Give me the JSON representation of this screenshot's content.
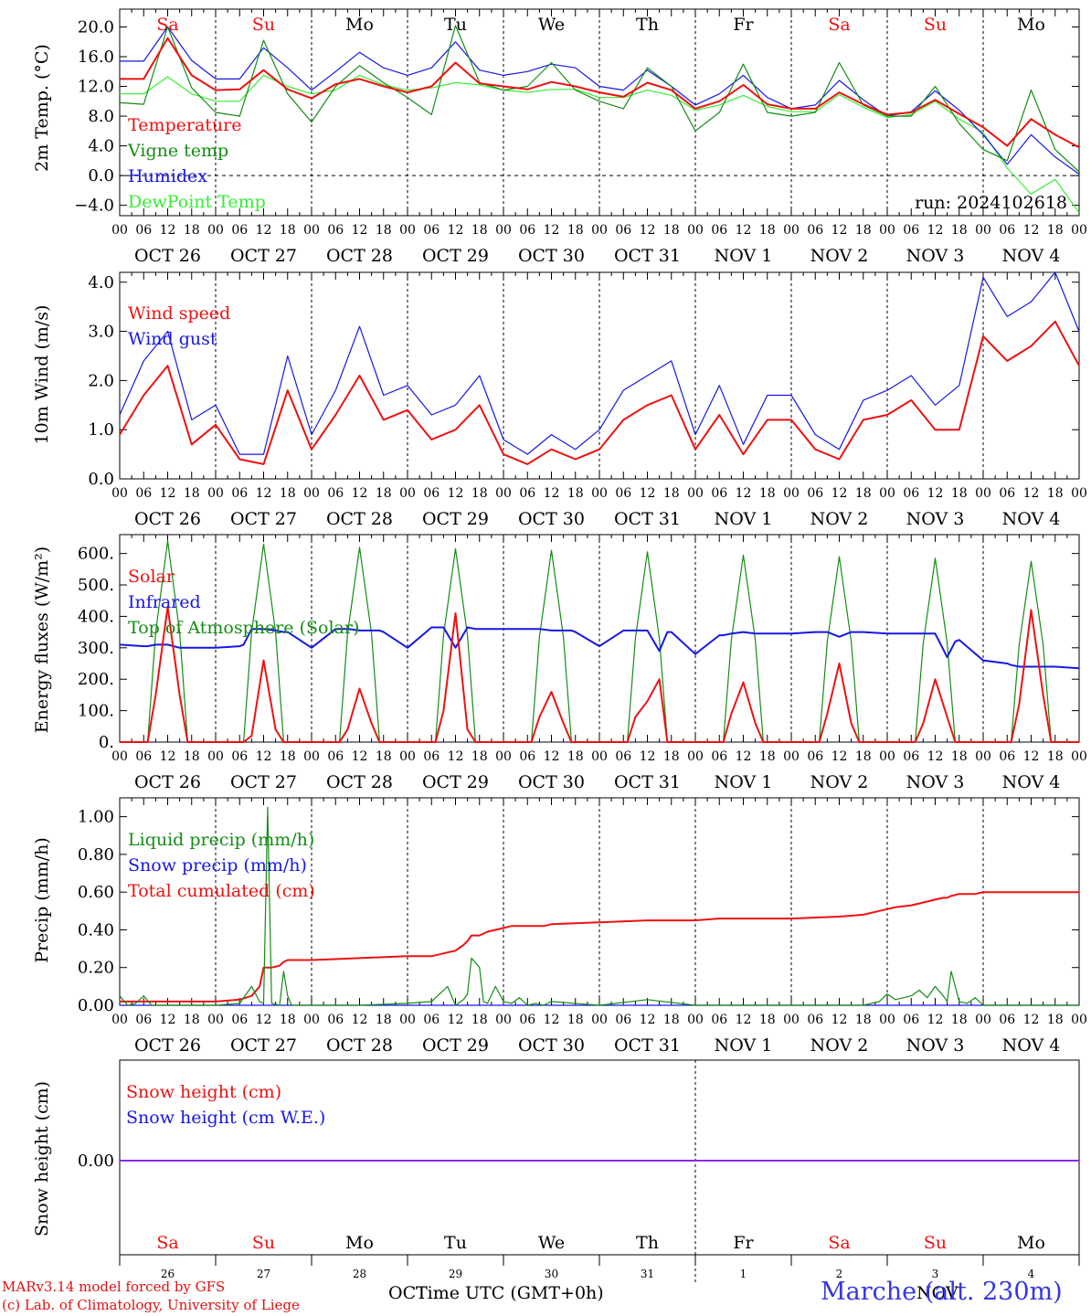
{
  "colors": {
    "red": "#ee1111",
    "darkgreen": "#148c14",
    "blue": "#1717e6",
    "lightgreen": "#33ee33",
    "purple": "#8a2be2",
    "weekend": "#ee1111",
    "weekday": "#000000"
  },
  "days_top": [
    {
      "label": "Sa",
      "weekend": true
    },
    {
      "label": "Su",
      "weekend": true
    },
    {
      "label": "Mo",
      "weekend": false
    },
    {
      "label": "Tu",
      "weekend": false
    },
    {
      "label": "We",
      "weekend": false
    },
    {
      "label": "Th",
      "weekend": false
    },
    {
      "label": "Fr",
      "weekend": false
    },
    {
      "label": "Sa",
      "weekend": true
    },
    {
      "label": "Su",
      "weekend": true
    },
    {
      "label": "Mo",
      "weekend": false
    }
  ],
  "hour_ticks": [
    "00",
    "06",
    "12",
    "18"
  ],
  "date_labels": [
    "OCT 26",
    "OCT 27",
    "OCT 28",
    "OCT 29",
    "OCT 30",
    "OCT 31",
    "NOV  1",
    "NOV  2",
    "NOV  3",
    "NOV  4"
  ],
  "bottom_day_numbers": [
    "26",
    "27",
    "28",
    "29",
    "30",
    "31",
    "1",
    "2",
    "3",
    "4"
  ],
  "footer": {
    "credit_line1": "MARv3.14 model forced by GFS",
    "credit_line2": "(c) Lab. of Climatology, University of Liege",
    "month_oct": "OCT",
    "month_nov": "NOV",
    "xlabel": "Time UTC (GMT+0h)",
    "station": "Marche (alt. 230m)"
  },
  "chart_data": [
    {
      "type": "line",
      "ylabel": "2m Temp. (°C)",
      "ylim": [
        -5.4,
        22.4
      ],
      "yticks": [
        -4.0,
        0.0,
        4.0,
        8.0,
        12.0,
        16.0,
        20.0
      ],
      "ytick_labels": [
        "−4.0",
        "0.0",
        "4.0",
        "8.0",
        "12.0",
        "16.0",
        "20.0"
      ],
      "zero_line": true,
      "annotation": "run: 2024102618",
      "x_hours": [
        0,
        6,
        12,
        18,
        24,
        30,
        36,
        42,
        48,
        54,
        60,
        66,
        72,
        78,
        84,
        90,
        96,
        102,
        108,
        114,
        120,
        126,
        132,
        138,
        144,
        150,
        156,
        162,
        168,
        174,
        180,
        186,
        192,
        198,
        204,
        210,
        216,
        222,
        228,
        234,
        240
      ],
      "series": [
        {
          "name": "Temperature",
          "color": "red",
          "values": [
            13.0,
            13.0,
            18.5,
            13.5,
            11.5,
            11.6,
            14.2,
            11.6,
            10.4,
            12.3,
            13.0,
            12.0,
            11.2,
            12.0,
            15.2,
            12.4,
            12.0,
            11.6,
            12.6,
            12.0,
            11.2,
            10.6,
            12.5,
            11.5,
            9.0,
            10.0,
            12.2,
            9.6,
            9.0,
            9.0,
            11.2,
            9.6,
            8.2,
            8.5,
            10.2,
            8.3,
            6.5,
            4.0,
            7.6,
            5.5,
            3.8
          ]
        },
        {
          "name": "Vigne temp",
          "color": "darkgreen",
          "values": [
            9.8,
            9.6,
            20.0,
            11.8,
            8.5,
            8.0,
            18.2,
            11.0,
            7.2,
            12.0,
            14.8,
            12.5,
            10.5,
            8.2,
            20.2,
            12.5,
            11.5,
            12.0,
            15.2,
            11.5,
            10.0,
            9.0,
            14.5,
            12.0,
            6.0,
            8.5,
            15.0,
            8.5,
            8.0,
            8.5,
            15.2,
            9.5,
            8.0,
            8.0,
            12.0,
            7.0,
            3.5,
            2.0,
            11.5,
            3.5,
            0.5
          ]
        },
        {
          "name": "Humidex",
          "color": "blue",
          "values": [
            15.4,
            15.4,
            20.0,
            15.5,
            13.0,
            13.0,
            17.2,
            14.5,
            11.5,
            14.0,
            16.6,
            14.5,
            13.5,
            14.5,
            18.0,
            14.2,
            13.5,
            14.0,
            15.0,
            14.5,
            12.0,
            11.5,
            14.2,
            12.0,
            9.5,
            11.0,
            13.5,
            10.5,
            9.0,
            9.5,
            12.8,
            10.2,
            8.0,
            8.6,
            11.4,
            8.8,
            5.5,
            1.5,
            5.5,
            2.5,
            0.2
          ]
        },
        {
          "name": "DewPoint Temp",
          "color": "lightgreen",
          "values": [
            11.0,
            11.0,
            13.3,
            11.0,
            10.0,
            10.0,
            13.5,
            12.0,
            11.0,
            11.5,
            13.5,
            12.2,
            11.5,
            11.8,
            12.5,
            12.2,
            11.5,
            11.2,
            11.6,
            11.6,
            10.5,
            10.5,
            11.5,
            10.8,
            8.8,
            9.5,
            10.8,
            9.3,
            8.6,
            8.6,
            10.9,
            9.2,
            7.8,
            8.2,
            10.0,
            7.6,
            5.8,
            1.0,
            -2.5,
            -0.5,
            -5.0
          ]
        }
      ]
    },
    {
      "type": "line",
      "ylabel": "10m Wind (m/s)",
      "ylim": [
        0,
        4.2
      ],
      "yticks": [
        0.0,
        1.0,
        2.0,
        3.0,
        4.0
      ],
      "ytick_labels": [
        "0.0",
        "1.0",
        "2.0",
        "3.0",
        "4.0"
      ],
      "x_hours": [
        0,
        6,
        12,
        18,
        24,
        30,
        36,
        42,
        48,
        54,
        60,
        66,
        72,
        78,
        84,
        90,
        96,
        102,
        108,
        114,
        120,
        126,
        132,
        138,
        144,
        150,
        156,
        162,
        168,
        174,
        180,
        186,
        192,
        198,
        204,
        210,
        216,
        222,
        228,
        234,
        240
      ],
      "series": [
        {
          "name": "Wind speed",
          "color": "red",
          "values": [
            0.9,
            1.7,
            2.3,
            0.7,
            1.1,
            0.4,
            0.3,
            1.8,
            0.6,
            1.3,
            2.1,
            1.2,
            1.4,
            0.8,
            1.0,
            1.5,
            0.5,
            0.3,
            0.6,
            0.4,
            0.6,
            1.2,
            1.5,
            1.7,
            0.6,
            1.3,
            0.5,
            1.2,
            1.2,
            0.6,
            0.4,
            1.2,
            1.3,
            1.6,
            1.0,
            1.0,
            2.9,
            2.4,
            2.7,
            3.2,
            2.3
          ]
        },
        {
          "name": "Wind gust",
          "color": "blue",
          "values": [
            1.3,
            2.4,
            3.0,
            1.2,
            1.5,
            0.5,
            0.5,
            2.5,
            0.9,
            1.8,
            3.1,
            1.7,
            1.9,
            1.3,
            1.5,
            2.1,
            0.8,
            0.5,
            0.9,
            0.6,
            1.0,
            1.8,
            2.1,
            2.4,
            0.9,
            1.9,
            0.7,
            1.7,
            1.7,
            0.9,
            0.6,
            1.6,
            1.8,
            2.1,
            1.5,
            1.9,
            4.1,
            3.3,
            3.6,
            4.2,
            3.0
          ]
        }
      ]
    },
    {
      "type": "line",
      "ylabel": "Energy fluxes (W/m²)",
      "ylim": [
        0,
        660
      ],
      "yticks": [
        0,
        100,
        200,
        300,
        400,
        500,
        600
      ],
      "ytick_labels": [
        "0.",
        "100.",
        "200.",
        "300.",
        "400.",
        "500.",
        "600."
      ],
      "x_hours": [
        0,
        6,
        7,
        9,
        12,
        15,
        17,
        18,
        24,
        30,
        31,
        33,
        36,
        39,
        41,
        42,
        48,
        54,
        55,
        57,
        60,
        63,
        65,
        66,
        72,
        78,
        79,
        81,
        84,
        87,
        89,
        90,
        96,
        102,
        103,
        105,
        108,
        111,
        113,
        114,
        120,
        126,
        127,
        129,
        132,
        135,
        137,
        138,
        144,
        150,
        151,
        153,
        156,
        159,
        161,
        162,
        168,
        174,
        175,
        177,
        180,
        183,
        185,
        186,
        192,
        198,
        199,
        201,
        204,
        207,
        209,
        210,
        216,
        222,
        223,
        225,
        228,
        231,
        233,
        234,
        240
      ],
      "series": [
        {
          "name": "Solar",
          "color": "red",
          "values": [
            0,
            0,
            0,
            150,
            430,
            150,
            0,
            0,
            0,
            0,
            0,
            20,
            260,
            40,
            0,
            0,
            0,
            0,
            0,
            40,
            170,
            60,
            0,
            0,
            0,
            0,
            0,
            100,
            410,
            40,
            0,
            0,
            0,
            0,
            0,
            80,
            160,
            60,
            0,
            0,
            0,
            0,
            0,
            80,
            130,
            200,
            0,
            0,
            0,
            0,
            0,
            90,
            190,
            60,
            0,
            0,
            0,
            0,
            0,
            90,
            250,
            60,
            0,
            0,
            0,
            0,
            0,
            60,
            200,
            80,
            0,
            0,
            0,
            0,
            0,
            120,
            420,
            150,
            0,
            0,
            0
          ]
        },
        {
          "name": "Infrared",
          "color": "blue",
          "values": [
            310,
            305,
            305,
            310,
            310,
            300,
            300,
            300,
            300,
            305,
            310,
            360,
            360,
            355,
            350,
            350,
            300,
            360,
            360,
            360,
            355,
            355,
            355,
            350,
            300,
            365,
            365,
            365,
            300,
            365,
            360,
            360,
            360,
            360,
            360,
            360,
            355,
            355,
            355,
            350,
            305,
            355,
            355,
            355,
            355,
            290,
            350,
            350,
            280,
            340,
            340,
            345,
            350,
            345,
            345,
            345,
            345,
            350,
            350,
            350,
            335,
            350,
            350,
            350,
            345,
            345,
            345,
            345,
            345,
            270,
            320,
            325,
            260,
            250,
            245,
            240,
            240,
            240,
            240,
            240,
            235
          ]
        },
        {
          "name": "Top of Atmosphere (Solar)",
          "color": "darkgreen",
          "values": [
            0,
            0,
            0,
            350,
            640,
            350,
            0,
            0,
            0,
            0,
            0,
            350,
            630,
            350,
            0,
            0,
            0,
            0,
            0,
            345,
            620,
            345,
            0,
            0,
            0,
            0,
            0,
            340,
            615,
            340,
            0,
            0,
            0,
            0,
            0,
            335,
            610,
            335,
            0,
            0,
            0,
            0,
            0,
            330,
            605,
            330,
            0,
            0,
            0,
            0,
            0,
            325,
            595,
            325,
            0,
            0,
            0,
            0,
            0,
            320,
            590,
            320,
            0,
            0,
            0,
            0,
            0,
            315,
            585,
            315,
            0,
            0,
            0,
            0,
            0,
            310,
            575,
            310,
            0,
            0,
            0
          ]
        }
      ]
    },
    {
      "type": "line",
      "ylabel": "Precip (mm/h)",
      "ylim": [
        0,
        1.1
      ],
      "yticks": [
        0.0,
        0.2,
        0.4,
        0.6,
        0.8,
        1.0
      ],
      "ytick_labels": [
        "0.00",
        "0.20",
        "0.40",
        "0.60",
        "0.80",
        "1.00"
      ],
      "x_hours": [
        0,
        2,
        4,
        6,
        8,
        10,
        12,
        18,
        24,
        30,
        33,
        35,
        36,
        37,
        38,
        40,
        41,
        42,
        43,
        46,
        48,
        60,
        72,
        78,
        82,
        84,
        86,
        87,
        88,
        90,
        91,
        92,
        94,
        96,
        98,
        100,
        102,
        104,
        106,
        108,
        120,
        132,
        144,
        150,
        156,
        168,
        180,
        186,
        190,
        192,
        194,
        198,
        200,
        202,
        204,
        206,
        207,
        208,
        210,
        212,
        214,
        216,
        222,
        228,
        234,
        240
      ],
      "series": [
        {
          "name": "Liquid precip (mm/h)",
          "color": "darkgreen",
          "values": [
            0.05,
            0,
            0.01,
            0.05,
            0,
            0,
            0,
            0,
            0,
            0.01,
            0.1,
            0.02,
            0.01,
            1.05,
            0.01,
            0,
            0.18,
            0.05,
            0,
            0,
            0,
            0,
            0.01,
            0.02,
            0.1,
            0,
            0.03,
            0.06,
            0.25,
            0.2,
            0.02,
            0.01,
            0.1,
            0.02,
            0.01,
            0.04,
            0,
            0.01,
            0,
            0.02,
            0,
            0.03,
            0,
            0,
            0,
            0,
            0,
            0,
            0.02,
            0.06,
            0.03,
            0.05,
            0.08,
            0.04,
            0.1,
            0.05,
            0.02,
            0.18,
            0.02,
            0.01,
            0.04,
            0,
            0,
            0,
            0,
            0
          ]
        },
        {
          "name": "Snow precip (mm/h)",
          "color": "blue",
          "values": [
            0,
            0,
            0,
            0,
            0,
            0,
            0,
            0,
            0,
            0,
            0,
            0,
            0,
            0,
            0,
            0,
            0,
            0,
            0,
            0,
            0,
            0,
            0,
            0,
            0,
            0,
            0,
            0,
            0,
            0,
            0,
            0,
            0,
            0,
            0,
            0,
            0,
            0,
            0,
            0,
            0,
            0,
            0,
            0,
            0,
            0,
            0,
            0,
            0,
            0,
            0,
            0,
            0,
            0,
            0,
            0,
            0,
            0,
            0,
            0,
            0,
            0,
            0,
            0,
            0,
            0
          ]
        },
        {
          "name": "Total cumulated (cm)",
          "color": "red",
          "values": [
            0.02,
            0.02,
            0.02,
            0.02,
            0.02,
            0.02,
            0.02,
            0.02,
            0.02,
            0.03,
            0.05,
            0.1,
            0.2,
            0.2,
            0.2,
            0.21,
            0.23,
            0.24,
            0.24,
            0.24,
            0.24,
            0.25,
            0.26,
            0.26,
            0.28,
            0.29,
            0.32,
            0.34,
            0.37,
            0.37,
            0.38,
            0.39,
            0.4,
            0.41,
            0.42,
            0.42,
            0.42,
            0.42,
            0.42,
            0.43,
            0.44,
            0.45,
            0.45,
            0.46,
            0.46,
            0.46,
            0.47,
            0.48,
            0.5,
            0.51,
            0.52,
            0.53,
            0.54,
            0.55,
            0.56,
            0.57,
            0.57,
            0.58,
            0.59,
            0.59,
            0.59,
            0.6,
            0.6,
            0.6,
            0.6,
            0.6
          ]
        }
      ]
    },
    {
      "type": "line",
      "ylabel": "Snow height (cm)",
      "ytick_labels": [
        "0.00"
      ],
      "x_hours": [
        0,
        240
      ],
      "series": [
        {
          "name": "Snow height (cm)",
          "color": "red",
          "values": [
            0,
            0
          ]
        },
        {
          "name": "Snow height (cm W.E.)",
          "color": "blue",
          "values": [
            0,
            0
          ]
        }
      ]
    }
  ]
}
